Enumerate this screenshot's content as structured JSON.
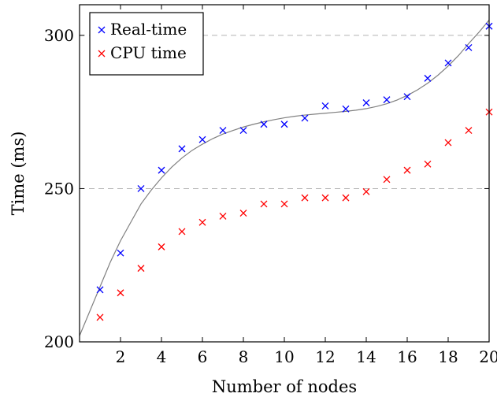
{
  "chart_data": {
    "type": "scatter",
    "xlabel": "Number of nodes",
    "ylabel": "Time (ms)",
    "xlim": [
      0,
      20
    ],
    "ylim": [
      200,
      310
    ],
    "x_ticks": [
      2,
      4,
      6,
      8,
      10,
      12,
      14,
      16,
      18,
      20
    ],
    "y_ticks": [
      200,
      250,
      300
    ],
    "grid": "horizontal dashed at y=250 and y=300",
    "legend_position": "top-left",
    "series": [
      {
        "name": "Real-time",
        "marker": "x",
        "color": "#0000ff",
        "x": [
          1,
          2,
          3,
          4,
          5,
          6,
          7,
          8,
          9,
          10,
          11,
          12,
          13,
          14,
          15,
          16,
          17,
          18,
          19,
          20
        ],
        "y": [
          217,
          229,
          250,
          256,
          263,
          266,
          269,
          269,
          271,
          271,
          273,
          277,
          276,
          278,
          279,
          280,
          286,
          291,
          296,
          303
        ]
      },
      {
        "name": "CPU time",
        "marker": "x",
        "color": "#ff0000",
        "x": [
          1,
          2,
          3,
          4,
          5,
          6,
          7,
          8,
          9,
          10,
          11,
          12,
          13,
          14,
          15,
          16,
          17,
          18,
          19,
          20
        ],
        "y": [
          208,
          216,
          224,
          231,
          236,
          239,
          241,
          242,
          245,
          245,
          247,
          247,
          247,
          249,
          253,
          256,
          258,
          265,
          269,
          275
        ]
      }
    ],
    "fit_curve": {
      "color": "#808080",
      "x": [
        0,
        0.5,
        1,
        1.5,
        2,
        2.5,
        3,
        3.5,
        4,
        4.5,
        5,
        5.5,
        6,
        6.5,
        7,
        7.5,
        8,
        8.5,
        9,
        9.5,
        10,
        10.5,
        11,
        11.5,
        12,
        12.5,
        13,
        13.5,
        14,
        14.5,
        15,
        15.5,
        16,
        16.5,
        17,
        17.5,
        18,
        18.5,
        19,
        19.5,
        20
      ],
      "y": [
        202,
        210,
        218,
        226,
        233,
        239,
        245,
        249.5,
        253.5,
        257,
        260,
        262.5,
        264.5,
        266.3,
        267.8,
        269,
        270.1,
        271,
        271.8,
        272.5,
        273.1,
        273.6,
        274,
        274.3,
        274.6,
        274.9,
        275.2,
        275.6,
        276.1,
        276.8,
        277.7,
        278.9,
        280.4,
        282.2,
        284.4,
        287,
        290,
        293.4,
        297.3,
        301,
        305
      ]
    }
  }
}
